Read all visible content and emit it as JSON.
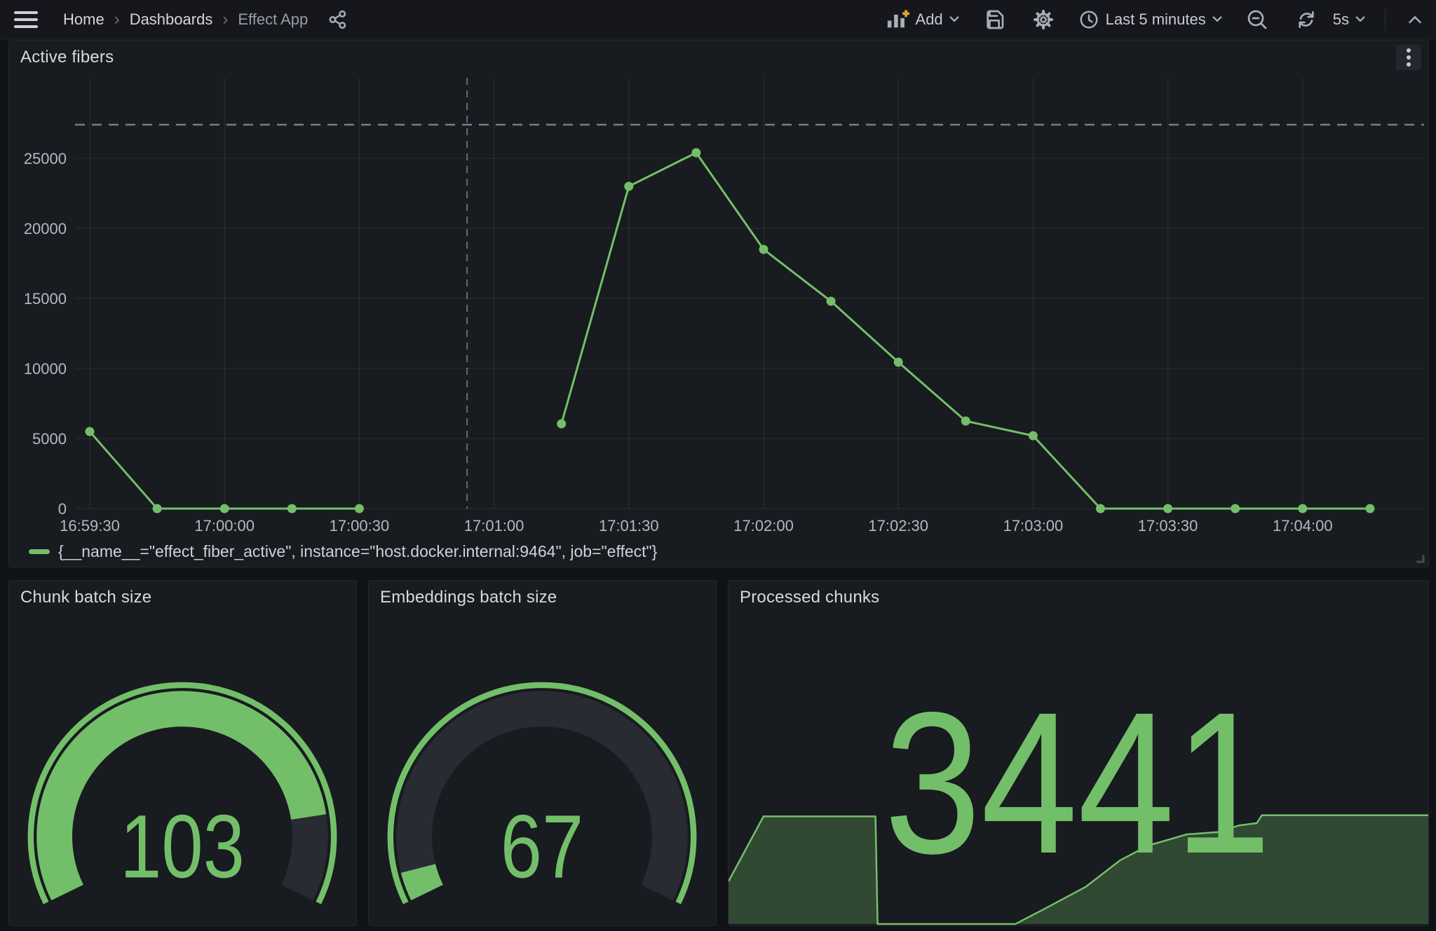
{
  "topbar": {
    "breadcrumb": {
      "items": [
        "Home",
        "Dashboards",
        "Effect App"
      ],
      "separator": "›"
    },
    "add_label": "Add",
    "time_range_label": "Last 5 minutes",
    "refresh_interval_label": "5s"
  },
  "panels": {
    "active_fibers": {
      "title": "Active fibers",
      "legend": "{__name__=\"effect_fiber_active\", instance=\"host.docker.internal:9464\", job=\"effect\"}"
    },
    "chunk_batch_size": {
      "title": "Chunk batch size"
    },
    "embeddings_batch_size": {
      "title": "Embeddings batch size"
    },
    "processed_chunks": {
      "title": "Processed chunks"
    }
  },
  "colors": {
    "accent_green": "#73bf69",
    "spark_fill": "rgba(115,191,105,0.28)",
    "gauge_track": "#282b31",
    "add_plus_orange": "#e8a33d",
    "panel_bg": "#181b1f",
    "page_bg": "#111217"
  },
  "chart_data": [
    {
      "type": "line",
      "title": "Active fibers",
      "x": [
        "16:59:30",
        "16:59:45",
        "17:00:00",
        "17:00:15",
        "17:00:30",
        "17:00:45",
        "17:01:00",
        "17:01:15",
        "17:01:30",
        "17:01:45",
        "17:02:00",
        "17:02:15",
        "17:02:30",
        "17:02:45",
        "17:03:00",
        "17:03:15",
        "17:03:30",
        "17:03:45",
        "17:04:00",
        "17:04:15"
      ],
      "series": [
        {
          "name": "{__name__=\"effect_fiber_active\", instance=\"host.docker.internal:9464\", job=\"effect\"}",
          "values": [
            5500,
            0,
            0,
            0,
            0,
            null,
            null,
            6050,
            23000,
            25400,
            18500,
            14800,
            10450,
            6250,
            5200,
            0,
            0,
            0,
            0,
            0
          ]
        }
      ],
      "x_tick_labels": [
        "16:59:30",
        "17:00:00",
        "17:00:30",
        "17:01:00",
        "17:01:30",
        "17:02:00",
        "17:02:30",
        "17:03:00",
        "17:03:30",
        "17:04:00"
      ],
      "y_ticks": [
        0,
        5000,
        10000,
        15000,
        20000,
        25000
      ],
      "ylim": [
        0,
        30750
      ],
      "threshold_line_y": 27400,
      "annotation_line_x": "17:00:54",
      "grid": true,
      "legend_position": "bottom"
    },
    {
      "type": "gauge",
      "title": "Chunk batch size",
      "value": 103,
      "fill_fraction": 0.85
    },
    {
      "type": "gauge",
      "title": "Embeddings batch size",
      "value": 67,
      "fill_fraction": 0.05
    },
    {
      "type": "stat",
      "title": "Processed chunks",
      "value": 3441,
      "sparkline": {
        "points": [
          [
            0,
            0.38
          ],
          [
            0.05,
            0.96
          ],
          [
            0.21,
            0.96
          ],
          [
            0.213,
            0
          ],
          [
            0.41,
            0
          ],
          [
            0.45,
            0.13
          ],
          [
            0.51,
            0.33
          ],
          [
            0.56,
            0.57
          ],
          [
            0.6,
            0.7
          ],
          [
            0.655,
            0.8
          ],
          [
            0.7,
            0.82
          ],
          [
            0.73,
            0.88
          ],
          [
            0.755,
            0.9
          ],
          [
            0.762,
            0.97
          ],
          [
            1,
            0.97
          ]
        ]
      }
    }
  ]
}
